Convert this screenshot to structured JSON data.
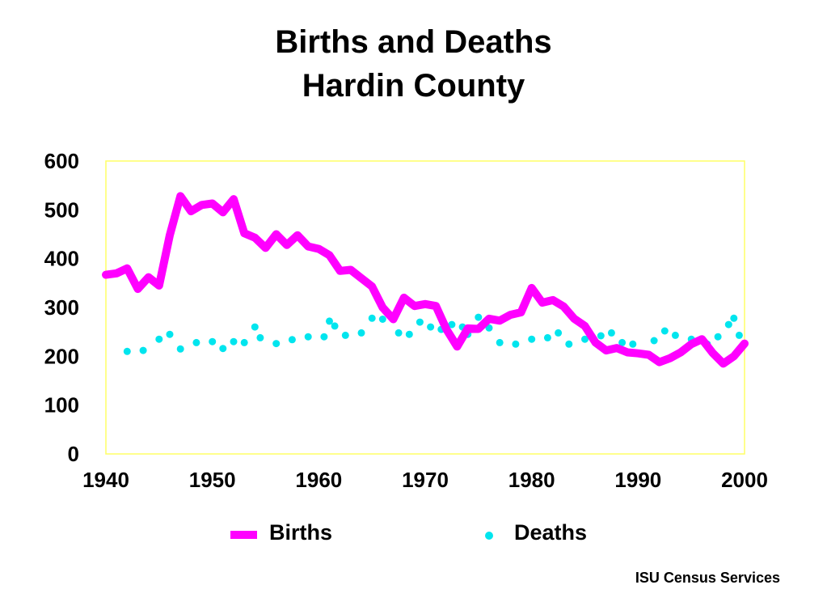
{
  "title_line1": "Births and Deaths",
  "title_line2": "Hardin County",
  "source": "ISU Census Services",
  "chart_data": {
    "type": "line",
    "title": "Births and Deaths Hardin County",
    "xlim": [
      1940,
      2000
    ],
    "ylim": [
      0,
      600
    ],
    "x_ticks": [
      "1940",
      "1950",
      "1960",
      "1970",
      "1980",
      "1990",
      "2000"
    ],
    "y_ticks": [
      "0",
      "100",
      "200",
      "300",
      "400",
      "500",
      "600"
    ],
    "grid": false,
    "legend_position": "bottom",
    "colors": {
      "births": "#ff00ff",
      "deaths": "#00e5ee",
      "plot_border": "#ffff66"
    },
    "series": [
      {
        "name": "Births",
        "style": "line",
        "x": [
          1940,
          1941,
          1942,
          1943,
          1944,
          1945,
          1946,
          1947,
          1948,
          1949,
          1950,
          1951,
          1952,
          1953,
          1954,
          1955,
          1956,
          1957,
          1958,
          1959,
          1960,
          1961,
          1962,
          1963,
          1964,
          1965,
          1966,
          1967,
          1968,
          1969,
          1970,
          1971,
          1972,
          1973,
          1974,
          1975,
          1976,
          1977,
          1978,
          1979,
          1980,
          1981,
          1982,
          1983,
          1984,
          1985,
          1986,
          1987,
          1988,
          1989,
          1990,
          1991,
          1992,
          1993,
          1994,
          1995,
          1996,
          1997,
          1998,
          1999,
          2000
        ],
        "values": [
          367,
          370,
          380,
          338,
          362,
          345,
          448,
          528,
          497,
          510,
          513,
          495,
          522,
          452,
          443,
          422,
          450,
          428,
          448,
          425,
          420,
          407,
          375,
          377,
          360,
          343,
          300,
          276,
          320,
          303,
          307,
          303,
          255,
          220,
          257,
          256,
          277,
          273,
          285,
          290,
          340,
          310,
          315,
          302,
          277,
          262,
          228,
          212,
          217,
          208,
          206,
          203,
          188,
          196,
          208,
          225,
          235,
          207,
          185,
          200,
          226
        ]
      },
      {
        "name": "Deaths",
        "style": "dots",
        "x": [
          1942,
          1943.5,
          1945,
          1946,
          1947,
          1948.5,
          1950,
          1951,
          1952,
          1953,
          1954,
          1954.5,
          1956,
          1957.5,
          1959,
          1960.5,
          1961,
          1961.5,
          1962.5,
          1964,
          1965,
          1966,
          1967,
          1967.5,
          1968.5,
          1969.5,
          1970.5,
          1971.5,
          1972.5,
          1973.5,
          1974,
          1975,
          1976,
          1977,
          1978.5,
          1980,
          1981.5,
          1982.5,
          1983.5,
          1985,
          1986.5,
          1987.5,
          1988.5,
          1989.5,
          1991.5,
          1992.5,
          1993.5,
          1995,
          1996.5,
          1997.5,
          1998.5,
          1999,
          1999.5
        ],
        "values": [
          210,
          212,
          235,
          245,
          215,
          228,
          230,
          216,
          230,
          228,
          260,
          238,
          226,
          234,
          240,
          240,
          272,
          262,
          243,
          248,
          278,
          276,
          280,
          248,
          245,
          270,
          260,
          255,
          265,
          260,
          245,
          280,
          258,
          228,
          225,
          235,
          238,
          248,
          225,
          235,
          242,
          248,
          228,
          225,
          232,
          252,
          243,
          235,
          225,
          240,
          265,
          278,
          243
        ]
      }
    ]
  }
}
